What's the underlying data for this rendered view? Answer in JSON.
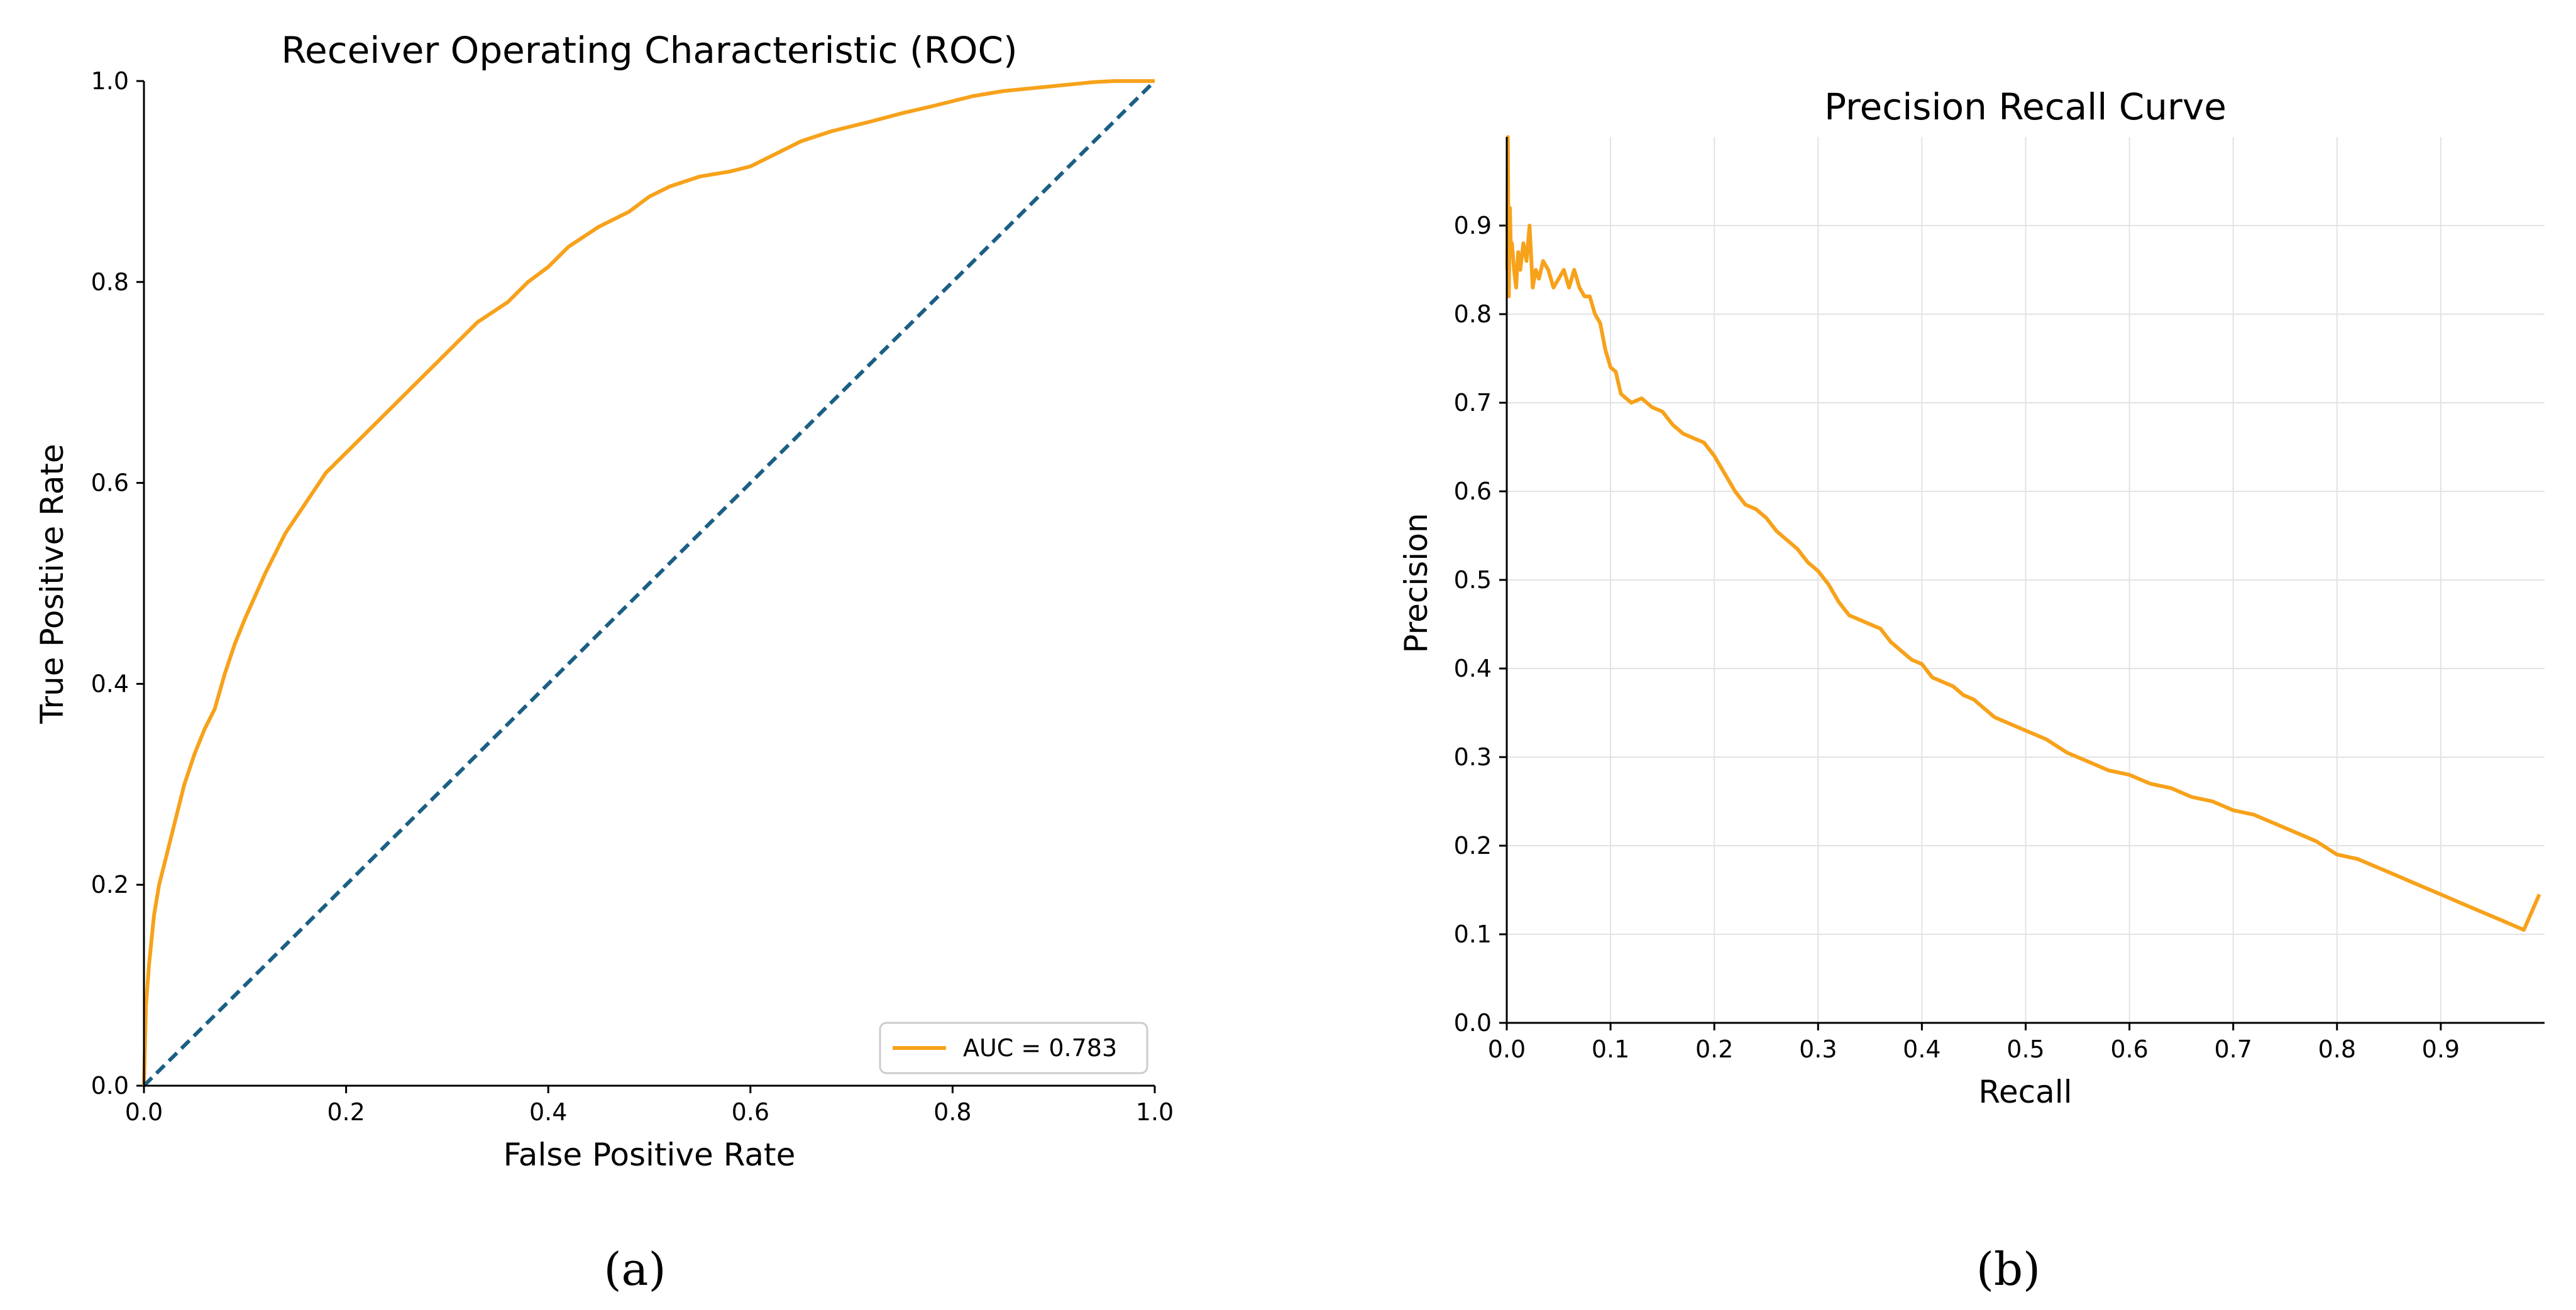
{
  "colors": {
    "curve": "#f7a21b",
    "chance": "#1b5f85",
    "grid": "#e3e3e3",
    "axis": "#000000"
  },
  "panel_labels": {
    "a": "(a)",
    "b": "(b)"
  },
  "chart_data": [
    {
      "type": "line",
      "title": "Receiver Operating Characteristic (ROC)",
      "xlabel": "False Positive Rate",
      "ylabel": "True Positive Rate",
      "xlim": [
        0.0,
        1.0
      ],
      "ylim": [
        0.0,
        1.0
      ],
      "xticks": [
        0.0,
        0.2,
        0.4,
        0.6,
        0.8,
        1.0
      ],
      "yticks": [
        0.0,
        0.2,
        0.4,
        0.6,
        0.8,
        1.0
      ],
      "tick_labels_x": [
        "0.0",
        "0.2",
        "0.4",
        "0.6",
        "0.8",
        "1.0"
      ],
      "tick_labels_y": [
        "0.0",
        "0.2",
        "0.4",
        "0.6",
        "0.8",
        "1.0"
      ],
      "grid": false,
      "legend": {
        "location": "lower-right",
        "entries": [
          "AUC = 0.783"
        ]
      },
      "series": [
        {
          "name": "AUC = 0.783",
          "style": "solid",
          "x": [
            0.0,
            0.002,
            0.005,
            0.01,
            0.015,
            0.02,
            0.03,
            0.04,
            0.05,
            0.06,
            0.07,
            0.08,
            0.09,
            0.1,
            0.12,
            0.14,
            0.16,
            0.18,
            0.2,
            0.22,
            0.25,
            0.28,
            0.3,
            0.33,
            0.36,
            0.38,
            0.4,
            0.42,
            0.45,
            0.48,
            0.5,
            0.52,
            0.55,
            0.58,
            0.6,
            0.62,
            0.65,
            0.68,
            0.7,
            0.72,
            0.75,
            0.78,
            0.8,
            0.82,
            0.85,
            0.88,
            0.9,
            0.92,
            0.94,
            0.96,
            0.98,
            1.0
          ],
          "y": [
            0.0,
            0.08,
            0.12,
            0.17,
            0.2,
            0.22,
            0.26,
            0.3,
            0.33,
            0.355,
            0.375,
            0.41,
            0.44,
            0.465,
            0.51,
            0.55,
            0.58,
            0.61,
            0.63,
            0.65,
            0.68,
            0.71,
            0.73,
            0.76,
            0.78,
            0.8,
            0.815,
            0.835,
            0.855,
            0.87,
            0.885,
            0.895,
            0.905,
            0.91,
            0.915,
            0.925,
            0.94,
            0.95,
            0.955,
            0.96,
            0.968,
            0.975,
            0.98,
            0.985,
            0.99,
            0.993,
            0.995,
            0.997,
            0.999,
            1.0,
            1.0,
            1.0
          ]
        },
        {
          "name": "chance",
          "style": "dashed",
          "x": [
            0.0,
            1.0
          ],
          "y": [
            0.0,
            1.0
          ]
        }
      ]
    },
    {
      "type": "line",
      "title": "Precision Recall Curve",
      "xlabel": "Recall",
      "ylabel": "Precision",
      "xlim": [
        0.0,
        1.0
      ],
      "ylim": [
        0.0,
        1.0
      ],
      "xticks": [
        0.0,
        0.1,
        0.2,
        0.3,
        0.4,
        0.5,
        0.6,
        0.7,
        0.8,
        0.9
      ],
      "yticks": [
        0.0,
        0.1,
        0.2,
        0.3,
        0.4,
        0.5,
        0.6,
        0.7,
        0.8,
        0.9
      ],
      "tick_labels_x": [
        "0.0",
        "0.1",
        "0.2",
        "0.3",
        "0.4",
        "0.5",
        "0.6",
        "0.7",
        "0.8",
        "0.9"
      ],
      "tick_labels_y": [
        "0.0",
        "0.1",
        "0.2",
        "0.3",
        "0.4",
        "0.5",
        "0.6",
        "0.7",
        "0.8",
        "0.9"
      ],
      "grid": true,
      "series": [
        {
          "name": "precision-recall",
          "style": "solid",
          "x": [
            0.0005,
            0.001,
            0.002,
            0.003,
            0.004,
            0.005,
            0.007,
            0.009,
            0.011,
            0.013,
            0.016,
            0.019,
            0.022,
            0.025,
            0.028,
            0.031,
            0.035,
            0.04,
            0.045,
            0.05,
            0.055,
            0.06,
            0.065,
            0.07,
            0.075,
            0.08,
            0.085,
            0.09,
            0.095,
            0.1,
            0.105,
            0.11,
            0.115,
            0.12,
            0.13,
            0.14,
            0.15,
            0.16,
            0.17,
            0.18,
            0.19,
            0.2,
            0.21,
            0.22,
            0.23,
            0.24,
            0.25,
            0.26,
            0.27,
            0.28,
            0.29,
            0.3,
            0.31,
            0.32,
            0.33,
            0.34,
            0.35,
            0.36,
            0.37,
            0.38,
            0.39,
            0.4,
            0.41,
            0.42,
            0.43,
            0.44,
            0.45,
            0.46,
            0.47,
            0.48,
            0.5,
            0.52,
            0.54,
            0.56,
            0.58,
            0.6,
            0.62,
            0.64,
            0.66,
            0.68,
            0.7,
            0.72,
            0.74,
            0.76,
            0.78,
            0.8,
            0.82,
            0.84,
            0.86,
            0.88,
            0.9,
            0.91,
            0.92,
            0.94,
            0.96,
            0.98,
            0.995
          ],
          "y": [
            0.85,
            1.0,
            0.82,
            0.92,
            0.87,
            0.88,
            0.85,
            0.83,
            0.87,
            0.85,
            0.88,
            0.86,
            0.9,
            0.83,
            0.85,
            0.84,
            0.86,
            0.85,
            0.83,
            0.84,
            0.85,
            0.83,
            0.85,
            0.83,
            0.82,
            0.82,
            0.8,
            0.79,
            0.76,
            0.74,
            0.735,
            0.71,
            0.705,
            0.7,
            0.705,
            0.695,
            0.69,
            0.675,
            0.665,
            0.66,
            0.655,
            0.64,
            0.62,
            0.6,
            0.585,
            0.58,
            0.57,
            0.555,
            0.545,
            0.535,
            0.52,
            0.51,
            0.495,
            0.475,
            0.46,
            0.455,
            0.45,
            0.445,
            0.43,
            0.42,
            0.41,
            0.405,
            0.39,
            0.385,
            0.38,
            0.37,
            0.365,
            0.355,
            0.345,
            0.34,
            0.33,
            0.32,
            0.305,
            0.295,
            0.285,
            0.28,
            0.27,
            0.265,
            0.255,
            0.25,
            0.24,
            0.235,
            0.225,
            0.215,
            0.205,
            0.19,
            0.185,
            0.175,
            0.165,
            0.155,
            0.145,
            0.14,
            0.135,
            0.125,
            0.115,
            0.105,
            0.145
          ]
        }
      ]
    }
  ]
}
